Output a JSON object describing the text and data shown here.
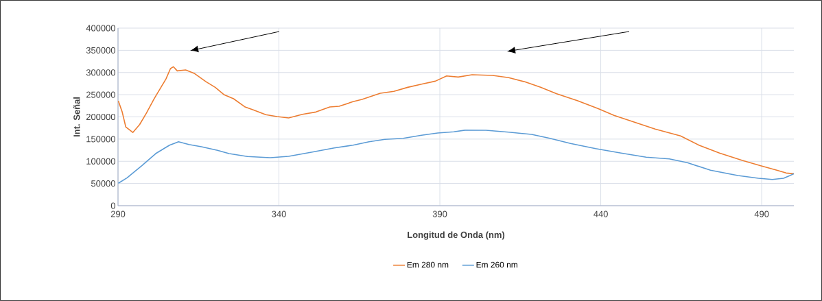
{
  "chart_data": {
    "type": "line",
    "xlabel": "Longitud de Onda (nm)",
    "ylabel": "Int. Señal",
    "xlim": [
      290,
      500
    ],
    "xticks": [
      290,
      340,
      390,
      440,
      490
    ],
    "ylim": [
      0,
      400000
    ],
    "yticks": [
      0,
      50000,
      100000,
      150000,
      200000,
      250000,
      300000,
      350000,
      400000
    ],
    "grid": true,
    "legend": "bottom",
    "marker": "none",
    "line_style": "solid",
    "series": [
      {
        "name": "Em 280 nm",
        "color": "#ed7d31",
        "x": [
          290.1,
          291.3,
          292.4,
          294.6,
          296.7,
          298.8,
          301.3,
          304.9,
          306.3,
          307.2,
          308.4,
          311,
          313.8,
          317.4,
          320.2,
          323,
          325.9,
          329.5,
          332.3,
          335.9,
          339.4,
          343,
          347.3,
          351.5,
          355.8,
          358.7,
          363,
          365.8,
          371.5,
          375.7,
          380,
          384.3,
          388.6,
          392.1,
          395.7,
          400,
          406.4,
          411.4,
          416.4,
          421.3,
          426.3,
          432.7,
          439.1,
          444.1,
          450.5,
          456.9,
          464.8,
          470.5,
          476.9,
          484,
          489.7,
          494.7,
          497.6,
          500
        ],
        "values": [
          236000,
          211000,
          177500,
          165000,
          182600,
          208400,
          242000,
          285600,
          308800,
          313000,
          303700,
          305700,
          297500,
          279000,
          266600,
          249700,
          240900,
          222300,
          215100,
          204900,
          200700,
          197600,
          205800,
          211000,
          222300,
          223900,
          234200,
          239300,
          253200,
          257400,
          266600,
          273800,
          280500,
          292300,
          289800,
          294900,
          293400,
          288300,
          279000,
          266600,
          252200,
          236700,
          218800,
          203400,
          187900,
          172500,
          157000,
          136300,
          118400,
          101900,
          90000,
          79800,
          73600,
          72000
        ]
      },
      {
        "name": "Em 260 nm",
        "color": "#5b9bd5",
        "x": [
          290.1,
          292.8,
          297.4,
          301.7,
          306,
          308.8,
          312,
          315.9,
          320.9,
          324.5,
          330.2,
          337.3,
          343,
          350.1,
          357.2,
          363,
          368,
          372.9,
          378.6,
          384.3,
          389.3,
          394.3,
          397.8,
          404.3,
          411.4,
          418.5,
          424.2,
          430.6,
          438.4,
          446.3,
          454.1,
          461.3,
          466.9,
          474.1,
          482.6,
          489,
          493.3,
          496.8,
          498.8,
          500
        ],
        "values": [
          50500,
          62800,
          90000,
          117300,
          136300,
          144100,
          137900,
          132800,
          124600,
          117300,
          110700,
          108100,
          111200,
          120400,
          130200,
          136300,
          144100,
          149300,
          151800,
          158600,
          163700,
          166300,
          170000,
          169800,
          165700,
          160600,
          151800,
          140000,
          128600,
          118400,
          109200,
          105500,
          96800,
          79800,
          67900,
          61800,
          59100,
          61800,
          67900,
          72000
        ]
      }
    ]
  }
}
